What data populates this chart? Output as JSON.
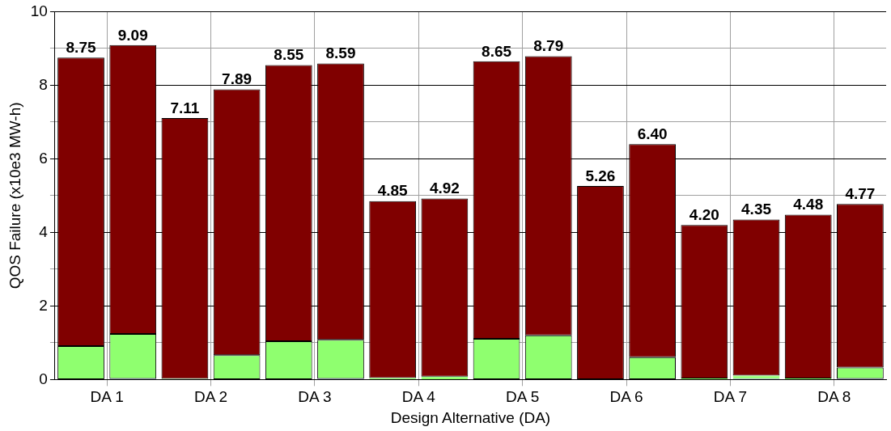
{
  "chart_data": {
    "type": "bar",
    "stacked": true,
    "xlabel": "Design Alternative (DA)",
    "ylabel": "QOS Failure (x10e3 MW-h)",
    "categories": [
      "DA 1",
      null,
      "DA 2",
      null,
      "DA 3",
      null,
      "DA 4",
      null,
      "DA 5",
      null,
      "DA 6",
      null,
      "DA 7",
      null,
      "DA 8",
      null
    ],
    "ylim": [
      0,
      10
    ],
    "yticks": [
      0,
      {
        "value": 1,
        "label": null
      },
      2,
      {
        "value": 3,
        "label": null
      },
      4,
      {
        "value": 5,
        "label": null
      },
      6,
      {
        "value": 7,
        "label": null
      },
      8,
      {
        "value": 9,
        "label": null
      },
      10
    ],
    "grid": true,
    "series": [
      {
        "color": "#000080",
        "values": [
          0,
          0.02,
          0,
          0,
          0,
          0.02,
          0,
          0,
          0,
          0,
          0,
          0,
          0,
          0.02,
          0,
          0.02
        ]
      },
      {
        "color": "#8fff6f",
        "values": [
          0.91,
          1.22,
          0.02,
          0.66,
          1.04,
          1.06,
          0.04,
          0.08,
          1.11,
          1.2,
          0,
          0.61,
          0.03,
          0.09,
          0.03,
          0.31
        ]
      },
      {
        "color": "#800000",
        "values": [
          7.84,
          7.85,
          7.09,
          7.23,
          7.51,
          7.51,
          4.81,
          4.84,
          7.54,
          7.59,
          5.26,
          5.79,
          4.17,
          4.24,
          4.45,
          4.44
        ]
      }
    ],
    "totals": [
      "8.75",
      "9.09",
      "7.11",
      "7.89",
      "8.55",
      "8.59",
      "4.85",
      "4.92",
      "8.65",
      "8.79",
      "5.26",
      "6.40",
      "4.20",
      "4.35",
      "4.48",
      "4.77"
    ]
  }
}
